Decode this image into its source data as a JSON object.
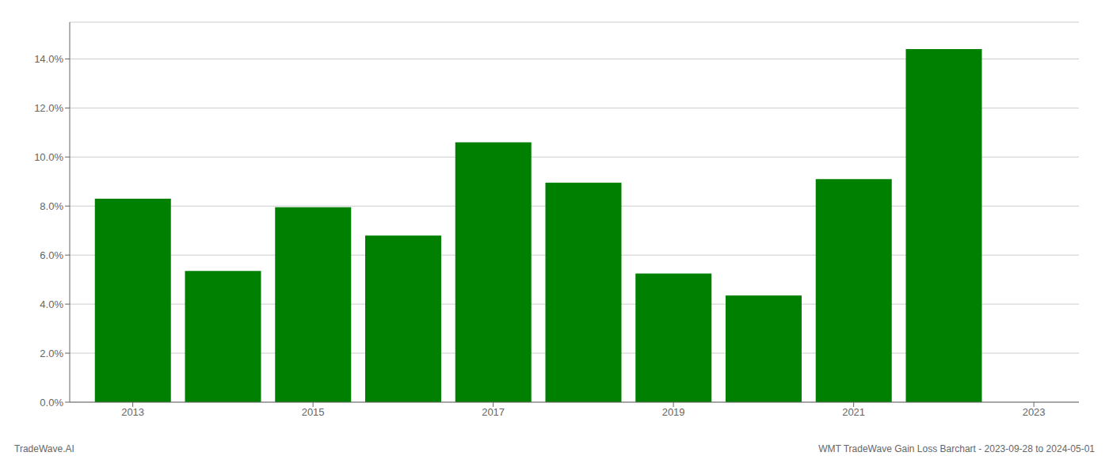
{
  "chart_data": {
    "type": "bar",
    "x": [
      2013,
      2014,
      2015,
      2016,
      2017,
      2018,
      2019,
      2020,
      2021,
      2022
    ],
    "values": [
      0.083,
      0.0535,
      0.0795,
      0.068,
      0.106,
      0.0895,
      0.0525,
      0.0435,
      0.091,
      0.144
    ],
    "color": "#008000",
    "xlim": [
      2012.3,
      2023.5
    ],
    "xticks": [
      2013,
      2015,
      2017,
      2019,
      2021,
      2023
    ],
    "ylim": [
      0,
      0.155
    ],
    "yticks": [
      {
        "value": 0.0,
        "label": "0.0%"
      },
      {
        "value": 0.02,
        "label": "2.0%"
      },
      {
        "value": 0.04,
        "label": "4.0%"
      },
      {
        "value": 0.06,
        "label": "6.0%"
      },
      {
        "value": 0.08,
        "label": "8.0%"
      },
      {
        "value": 0.1,
        "label": "10.0%"
      },
      {
        "value": 0.12,
        "label": "12.0%"
      },
      {
        "value": 0.14,
        "label": "14.0%"
      }
    ],
    "grid": true,
    "annotations": [
      "TradeWave.AI",
      "WMT TradeWave Gain Loss Barchart - 2023-09-28 to 2024-05-01"
    ]
  }
}
